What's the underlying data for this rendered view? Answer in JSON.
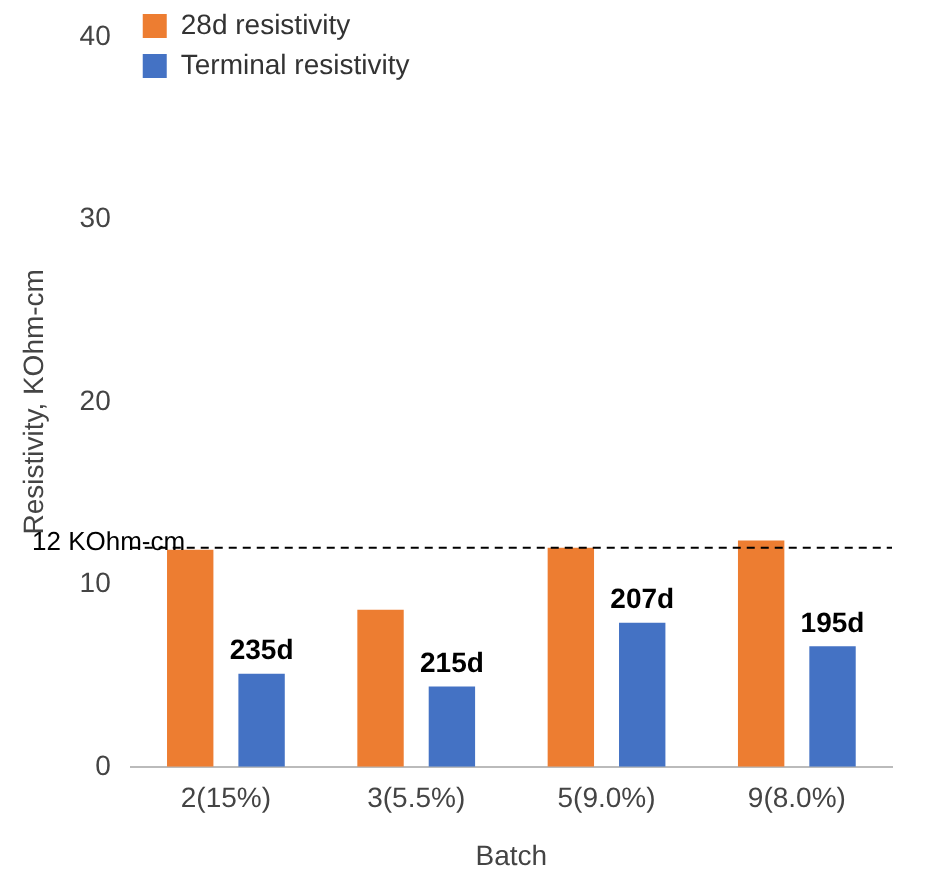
{
  "chart_data": {
    "type": "bar",
    "xlabel": "Batch",
    "ylabel": "Resistivity, KOhm-cm",
    "categories": [
      "2(15%)",
      "3(5.5%)",
      "5(9.0%)",
      "9(8.0%)"
    ],
    "series": [
      {
        "name": "28d resistivity",
        "color": "#ed7d31",
        "values": [
          11.9,
          8.6,
          12.0,
          12.4
        ]
      },
      {
        "name": "Terminal resistivity",
        "color": "#4472c4",
        "values": [
          5.1,
          4.4,
          7.9,
          6.6
        ]
      }
    ],
    "ylim": [
      0,
      40
    ],
    "yticks": [
      0,
      10,
      20,
      30,
      40
    ],
    "grid": false,
    "legend": "top left",
    "ref_lines": [
      {
        "axis": "y",
        "value": 12,
        "label": "12 KOhm-cm",
        "line_style": "dashed",
        "color": "#000000"
      }
    ],
    "annotations": [
      "235d",
      "215d",
      "207d",
      "195d"
    ]
  }
}
